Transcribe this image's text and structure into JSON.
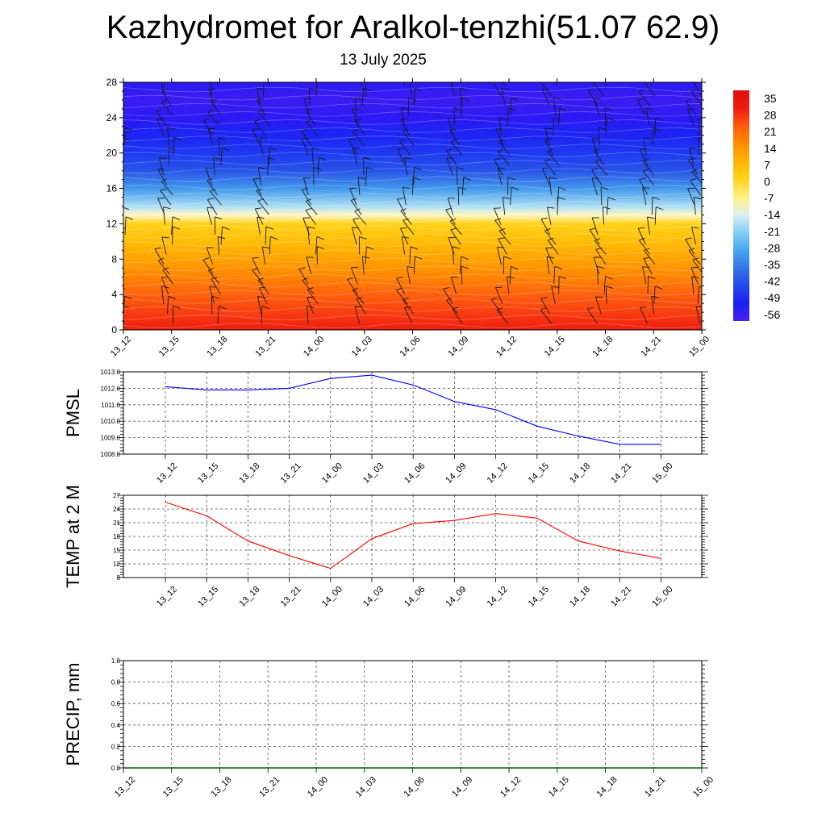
{
  "header": {
    "title": "Kazhydromet for Aralkol-tenzhi(51.07 62.9)",
    "subtitle": "13 July 2025"
  },
  "time_labels": [
    "13_12",
    "13_15",
    "13_18",
    "13_21",
    "14_00",
    "14_03",
    "14_06",
    "14_09",
    "14_12",
    "14_15",
    "14_18",
    "14_21",
    "15_00"
  ],
  "chart_data": [
    {
      "id": "temperature-cross-section",
      "type": "heatmap",
      "x": [
        "13_12",
        "13_15",
        "13_18",
        "13_21",
        "14_00",
        "14_03",
        "14_06",
        "14_09",
        "14_12",
        "14_15",
        "14_18",
        "14_21",
        "15_00"
      ],
      "ylim": [
        0,
        28
      ],
      "yticks": [
        0,
        4,
        8,
        12,
        16,
        20,
        24,
        28
      ],
      "colorbar_labels": [
        "35",
        "28",
        "21",
        "14",
        "7",
        "0",
        "-7",
        "-14",
        "-21",
        "-28",
        "-35",
        "-42",
        "-49",
        "-56"
      ],
      "temperature_by_level": {
        "levels": [
          0,
          2,
          4,
          6,
          8,
          10,
          12,
          13,
          14,
          16,
          18,
          20,
          22,
          24,
          26,
          28
        ],
        "values": [
          28,
          24,
          20,
          15,
          10,
          5,
          0,
          -10,
          -18,
          -30,
          -40,
          -45,
          -48,
          -52,
          -54,
          -52
        ]
      },
      "overlay": "wind barbs"
    },
    {
      "id": "pmsl",
      "type": "line",
      "ylabel": "PMSL",
      "x": [
        "13_12",
        "13_15",
        "13_18",
        "13_21",
        "14_00",
        "14_03",
        "14_06",
        "14_09",
        "14_12",
        "14_15",
        "14_18",
        "14_21",
        "15_00"
      ],
      "values": [
        1012.1,
        1011.9,
        1011.9,
        1012.0,
        1012.6,
        1012.8,
        1012.2,
        1011.2,
        1010.7,
        1009.7,
        1009.1,
        1008.6,
        1008.6
      ],
      "ylim": [
        1008.0,
        1013.0
      ],
      "yticks": [
        "1008.0",
        "1009.0",
        "1010.0",
        "1011.0",
        "1012.0",
        "1013.0"
      ],
      "color": "#0000ff",
      "grid": true
    },
    {
      "id": "temp-2m",
      "type": "line",
      "ylabel": "TEMP at 2 M",
      "x": [
        "13_12",
        "13_15",
        "13_18",
        "13_21",
        "14_00",
        "14_03",
        "14_06",
        "14_09",
        "14_12",
        "14_15",
        "14_18",
        "14_21",
        "15_00"
      ],
      "values": [
        25.5,
        22.5,
        17.0,
        13.8,
        11.0,
        17.5,
        20.8,
        21.5,
        23.0,
        22.0,
        17.0,
        14.8,
        13.2
      ],
      "ylim": [
        9,
        27
      ],
      "yticks": [
        "9",
        "12",
        "15",
        "18",
        "21",
        "24",
        "27"
      ],
      "color": "#ff0000",
      "grid": true
    },
    {
      "id": "precip",
      "type": "line",
      "ylabel": "PRECIP, mm",
      "x": [
        "13_12",
        "13_15",
        "13_18",
        "13_21",
        "14_00",
        "14_03",
        "14_06",
        "14_09",
        "14_12",
        "14_15",
        "14_18",
        "14_21",
        "15_00"
      ],
      "values": [
        0,
        0,
        0,
        0,
        0,
        0,
        0,
        0,
        0,
        0,
        0,
        0,
        0
      ],
      "ylim": [
        0.0,
        1.0
      ],
      "yticks": [
        "0.0",
        "0.2",
        "0.4",
        "0.6",
        "0.8",
        "1.0"
      ],
      "color": "#006400",
      "grid": true
    }
  ]
}
